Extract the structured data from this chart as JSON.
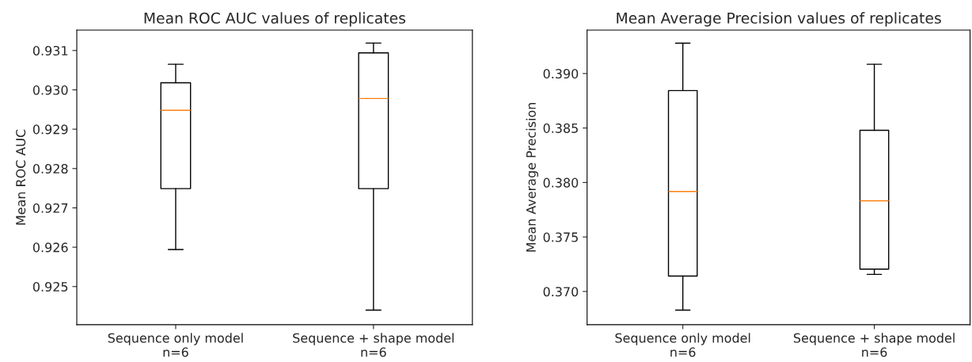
{
  "chart_data": [
    {
      "type": "box",
      "title": "Mean ROC AUC values of replicates",
      "ylabel": "Mean ROC AUC",
      "categories": [
        "Sequence only model\nn=6",
        "Sequence + shape model\nn=6"
      ],
      "boxes": [
        {
          "low": 0.92594,
          "q1": 0.92749,
          "median": 0.92948,
          "q3": 0.93018,
          "high": 0.93065
        },
        {
          "low": 0.9244,
          "q1": 0.92749,
          "median": 0.92978,
          "q3": 0.93094,
          "high": 0.93119
        }
      ],
      "color": "#000000",
      "ylim": [
        0.92403,
        0.93152
      ],
      "yticks": [
        0.925,
        0.926,
        0.927,
        0.928,
        0.929,
        {
          "value": 0.93,
          "label": "0.930"
        },
        0.931
      ],
      "grid": false
    },
    {
      "type": "box",
      "title": "Mean Average Precision values of replicates",
      "ylabel": "Mean Average Precision",
      "categories": [
        "Sequence only model\nn=6",
        "Sequence + shape model\nn=6"
      ],
      "boxes": [
        {
          "low": 0.36829,
          "q1": 0.37142,
          "median": 0.37917,
          "q3": 0.38843,
          "high": 0.39279
        },
        {
          "low": 0.37157,
          "q1": 0.37205,
          "median": 0.37832,
          "q3": 0.38479,
          "high": 0.39085
        }
      ],
      "color": "#000000",
      "ylim": [
        0.36695,
        0.39399
      ],
      "yticks": [
        {
          "value": 0.37,
          "label": "0.370"
        },
        0.375,
        {
          "value": 0.38,
          "label": "0.380"
        },
        0.385,
        {
          "value": 0.39,
          "label": "0.390"
        }
      ],
      "grid": false
    }
  ]
}
